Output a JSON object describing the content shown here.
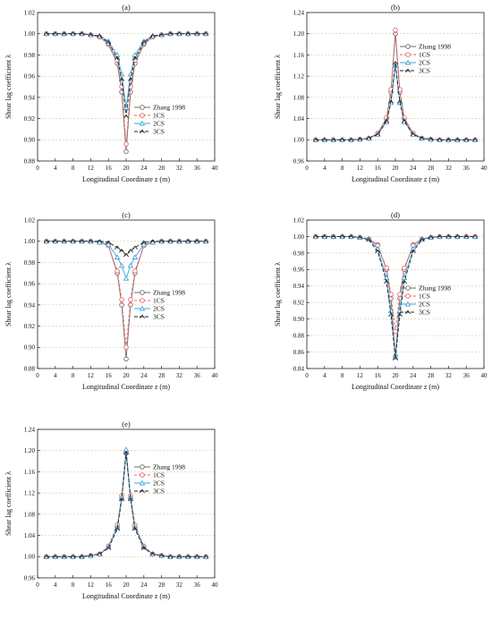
{
  "styles": {
    "Zhang 1998": {
      "color": "#6e6e6e",
      "dash": "",
      "marker": "circle"
    },
    "1CS": {
      "color": "#f06666",
      "dash": "3,2",
      "marker": "circle"
    },
    "2CS": {
      "color": "#42a5dc",
      "dash": "",
      "marker": "triangle"
    },
    "3CS": {
      "color": "#222222",
      "dash": "4,2",
      "marker": "chevron"
    }
  },
  "chart_data": [
    {
      "type": "line",
      "title": "(a)",
      "xlabel": "Longitudinal Coordinate z (m)",
      "ylabel": "Shear lag coefficient λ",
      "xlim": [
        0,
        40
      ],
      "ylim": [
        0.88,
        1.02
      ],
      "xticks": [
        "0",
        "4",
        "8",
        "12",
        "16",
        "20",
        "24",
        "28",
        "32",
        "36",
        "40"
      ],
      "yticks": [
        "0.88",
        "0.90",
        "0.92",
        "0.94",
        "0.96",
        "0.98",
        "1.00",
        "1.02"
      ],
      "grid": "horizontal dashed",
      "legend": "right",
      "x": [
        2,
        4,
        6,
        8,
        10,
        12,
        14,
        16,
        18,
        19,
        20,
        21,
        22,
        24,
        26,
        28,
        30,
        32,
        34,
        36,
        38
      ],
      "series": [
        {
          "name": "Zhang 1998",
          "values": [
            1.0,
            1.0,
            1.0,
            1.0,
            1.0,
            0.999,
            0.997,
            0.99,
            0.972,
            0.945,
            0.889,
            0.945,
            0.972,
            0.99,
            0.997,
            0.999,
            1.0,
            1.0,
            1.0,
            1.0,
            1.0
          ]
        },
        {
          "name": "1CS",
          "values": [
            1.0,
            1.0,
            1.0,
            1.0,
            1.0,
            0.999,
            0.997,
            0.991,
            0.975,
            0.95,
            0.896,
            0.95,
            0.975,
            0.991,
            0.997,
            0.999,
            1.0,
            1.0,
            1.0,
            1.0,
            1.0
          ]
        },
        {
          "name": "2CS",
          "values": [
            1.0,
            1.0,
            1.0,
            1.0,
            1.0,
            0.999,
            0.998,
            0.993,
            0.98,
            0.962,
            0.93,
            0.962,
            0.98,
            0.993,
            0.998,
            0.999,
            1.0,
            1.0,
            1.0,
            1.0,
            1.0
          ]
        },
        {
          "name": "3CS",
          "values": [
            1.0,
            1.0,
            1.0,
            1.0,
            1.0,
            0.999,
            0.998,
            0.992,
            0.977,
            0.957,
            0.922,
            0.957,
            0.977,
            0.992,
            0.998,
            0.999,
            1.0,
            1.0,
            1.0,
            1.0,
            1.0
          ]
        }
      ]
    },
    {
      "type": "line",
      "title": "(b)",
      "xlabel": "Longitudinal Coordinate z (m)",
      "ylabel": "Shear lag coefficient λ",
      "xlim": [
        0,
        40
      ],
      "ylim": [
        0.96,
        1.24
      ],
      "xticks": [
        "0",
        "4",
        "8",
        "12",
        "16",
        "20",
        "24",
        "28",
        "32",
        "36",
        "40"
      ],
      "yticks": [
        "0.96",
        "1.00",
        "1.04",
        "1.08",
        "1.12",
        "1.16",
        "1.20",
        "1.24"
      ],
      "grid": "horizontal dashed",
      "legend": "top-right",
      "x": [
        2,
        4,
        6,
        8,
        10,
        12,
        14,
        16,
        18,
        19,
        20,
        21,
        22,
        24,
        26,
        28,
        30,
        32,
        34,
        36,
        38
      ],
      "series": [
        {
          "name": "Zhang 1998",
          "values": [
            1.0,
            1.0,
            1.0,
            1.0,
            1.0,
            1.001,
            1.003,
            1.012,
            1.04,
            1.09,
            1.2,
            1.09,
            1.04,
            1.012,
            1.003,
            1.001,
            1.0,
            1.0,
            1.0,
            1.0,
            1.0
          ]
        },
        {
          "name": "1CS",
          "values": [
            1.0,
            1.0,
            1.0,
            1.0,
            1.0,
            1.001,
            1.003,
            1.012,
            1.042,
            1.095,
            1.207,
            1.095,
            1.042,
            1.012,
            1.003,
            1.001,
            1.0,
            1.0,
            1.0,
            1.0,
            1.0
          ]
        },
        {
          "name": "2CS",
          "values": [
            1.0,
            1.0,
            1.0,
            1.0,
            1.0,
            1.001,
            1.003,
            1.01,
            1.034,
            1.07,
            1.14,
            1.07,
            1.034,
            1.01,
            1.003,
            1.001,
            1.0,
            1.0,
            1.0,
            1.0,
            1.0
          ]
        },
        {
          "name": "3CS",
          "values": [
            1.0,
            1.0,
            1.0,
            1.0,
            1.0,
            1.001,
            1.003,
            1.01,
            1.035,
            1.072,
            1.145,
            1.072,
            1.035,
            1.01,
            1.003,
            1.001,
            1.0,
            1.0,
            1.0,
            1.0,
            1.0
          ]
        }
      ]
    },
    {
      "type": "line",
      "title": "(c)",
      "xlabel": "Longitudinal Coordinate z (m)",
      "ylabel": "Shear lag coefficient λ",
      "xlim": [
        0,
        40
      ],
      "ylim": [
        0.88,
        1.02
      ],
      "xticks": [
        "0",
        "4",
        "8",
        "12",
        "16",
        "20",
        "24",
        "28",
        "32",
        "36",
        "40"
      ],
      "yticks": [
        "0.88",
        "0.90",
        "0.92",
        "0.94",
        "0.96",
        "0.98",
        "1.00",
        "1.02"
      ],
      "grid": "horizontal dashed",
      "legend": "right",
      "x": [
        2,
        4,
        6,
        8,
        10,
        12,
        14,
        16,
        18,
        19,
        20,
        21,
        22,
        24,
        26,
        28,
        30,
        32,
        34,
        36,
        38
      ],
      "series": [
        {
          "name": "Zhang 1998",
          "values": [
            1.0,
            1.0,
            1.0,
            1.0,
            1.0,
            1.0,
            0.999,
            0.996,
            0.97,
            0.94,
            0.889,
            0.94,
            0.97,
            0.996,
            0.999,
            1.0,
            1.0,
            1.0,
            1.0,
            1.0,
            1.0
          ]
        },
        {
          "name": "1CS",
          "values": [
            1.0,
            1.0,
            1.0,
            1.0,
            1.0,
            1.0,
            0.999,
            0.996,
            0.972,
            0.945,
            0.9,
            0.945,
            0.972,
            0.996,
            0.999,
            1.0,
            1.0,
            1.0,
            1.0,
            1.0,
            1.0
          ]
        },
        {
          "name": "2CS",
          "values": [
            1.0,
            1.0,
            1.0,
            1.0,
            1.0,
            1.0,
            0.999,
            0.997,
            0.985,
            0.977,
            0.965,
            0.977,
            0.985,
            0.997,
            0.999,
            1.0,
            1.0,
            1.0,
            1.0,
            1.0,
            1.0
          ]
        },
        {
          "name": "3CS",
          "values": [
            1.0,
            1.0,
            1.0,
            1.0,
            1.0,
            1.0,
            1.0,
            0.999,
            0.994,
            0.991,
            0.987,
            0.991,
            0.994,
            0.999,
            1.0,
            1.0,
            1.0,
            1.0,
            1.0,
            1.0,
            1.0
          ]
        }
      ]
    },
    {
      "type": "line",
      "title": "(d)",
      "xlabel": "Longitudinal Coordinate z (m)",
      "ylabel": "Shear lag coefficient λ",
      "xlim": [
        0,
        40
      ],
      "ylim": [
        0.84,
        1.02
      ],
      "xticks": [
        "0",
        "4",
        "8",
        "12",
        "16",
        "20",
        "24",
        "28",
        "32",
        "36",
        "40"
      ],
      "yticks": [
        "0.84",
        "0.86",
        "0.88",
        "0.90",
        "0.92",
        "0.94",
        "0.96",
        "0.98",
        "1.00",
        "1.02"
      ],
      "grid": "horizontal dashed",
      "legend": "right",
      "x": [
        2,
        4,
        6,
        8,
        10,
        12,
        14,
        16,
        18,
        19,
        20,
        21,
        22,
        24,
        26,
        28,
        30,
        32,
        34,
        36,
        38
      ],
      "series": [
        {
          "name": "Zhang 1998",
          "values": [
            1.0,
            1.0,
            1.0,
            1.0,
            1.0,
            0.999,
            0.997,
            0.99,
            0.96,
            0.925,
            0.855,
            0.925,
            0.96,
            0.99,
            0.997,
            0.999,
            1.0,
            1.0,
            1.0,
            1.0,
            1.0
          ]
        },
        {
          "name": "1CS",
          "values": [
            1.0,
            1.0,
            1.0,
            1.0,
            1.0,
            0.999,
            0.997,
            0.989,
            0.962,
            0.93,
            0.885,
            0.93,
            0.962,
            0.989,
            0.997,
            0.999,
            1.0,
            1.0,
            1.0,
            1.0,
            1.0
          ]
        },
        {
          "name": "2CS",
          "values": [
            1.0,
            1.0,
            1.0,
            1.0,
            1.0,
            0.999,
            0.997,
            0.985,
            0.95,
            0.91,
            0.854,
            0.91,
            0.95,
            0.985,
            0.997,
            0.999,
            1.0,
            1.0,
            1.0,
            1.0,
            1.0
          ]
        },
        {
          "name": "3CS",
          "values": [
            1.0,
            1.0,
            1.0,
            1.0,
            1.0,
            0.999,
            0.996,
            0.982,
            0.945,
            0.905,
            0.852,
            0.905,
            0.945,
            0.982,
            0.996,
            0.999,
            1.0,
            1.0,
            1.0,
            1.0,
            1.0
          ]
        }
      ]
    },
    {
      "type": "line",
      "title": "(e)",
      "xlabel": "Longitudinal Coordinate z (m)",
      "ylabel": "Shear lag coefficient λ",
      "xlim": [
        0,
        40
      ],
      "ylim": [
        0.96,
        1.24
      ],
      "xticks": [
        "0",
        "4",
        "8",
        "12",
        "16",
        "20",
        "24",
        "28",
        "32",
        "36",
        "40"
      ],
      "yticks": [
        "0.96",
        "1.00",
        "1.04",
        "1.08",
        "1.12",
        "1.16",
        "1.20",
        "1.24"
      ],
      "grid": "horizontal dashed",
      "legend": "right",
      "x": [
        2,
        4,
        6,
        8,
        10,
        12,
        14,
        16,
        18,
        19,
        20,
        21,
        22,
        24,
        26,
        28,
        30,
        32,
        34,
        36,
        38
      ],
      "series": [
        {
          "name": "Zhang 1998",
          "values": [
            1.0,
            1.0,
            1.0,
            1.0,
            1.0,
            1.002,
            1.005,
            1.018,
            1.055,
            1.11,
            1.195,
            1.11,
            1.055,
            1.018,
            1.005,
            1.002,
            1.0,
            1.0,
            1.0,
            1.0,
            1.0
          ]
        },
        {
          "name": "1CS",
          "values": [
            1.0,
            1.0,
            1.0,
            1.0,
            1.0,
            1.002,
            1.005,
            1.02,
            1.06,
            1.115,
            1.198,
            1.115,
            1.06,
            1.02,
            1.005,
            1.002,
            1.0,
            1.0,
            1.0,
            1.0,
            1.0
          ]
        },
        {
          "name": "2CS",
          "values": [
            1.0,
            1.0,
            1.0,
            1.0,
            1.0,
            1.002,
            1.005,
            1.018,
            1.055,
            1.112,
            1.202,
            1.112,
            1.055,
            1.018,
            1.005,
            1.002,
            1.0,
            1.0,
            1.0,
            1.0,
            1.0
          ]
        },
        {
          "name": "3CS",
          "values": [
            1.0,
            1.0,
            1.0,
            1.0,
            1.0,
            1.002,
            1.005,
            1.016,
            1.052,
            1.108,
            1.196,
            1.108,
            1.052,
            1.016,
            1.005,
            1.002,
            1.0,
            1.0,
            1.0,
            1.0,
            1.0
          ]
        }
      ]
    }
  ]
}
